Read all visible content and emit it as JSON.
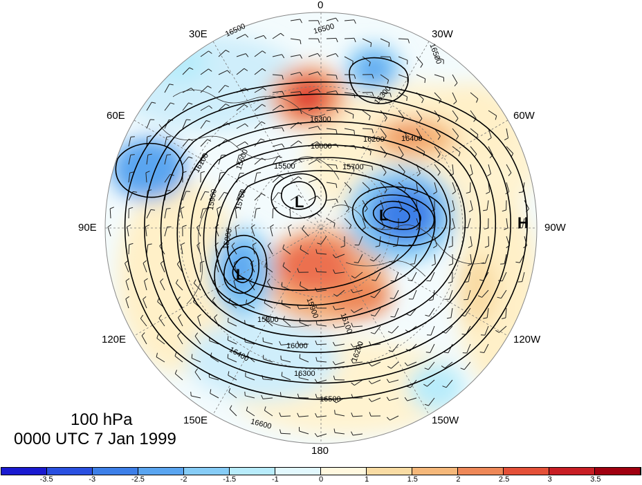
{
  "map": {
    "title_level": "100 hPa",
    "title_time": "0000 UTC 7 Jan 1999",
    "longitude_labels": [
      "0",
      "30W",
      "60W",
      "90W",
      "120W",
      "150W",
      "180",
      "150E",
      "120E",
      "90E",
      "60E",
      "30E"
    ],
    "pressure_systems": [
      "L",
      "L",
      "L",
      "H"
    ],
    "contour_labels": [
      "16500",
      "16500",
      "16500",
      "16400",
      "16300",
      "16300",
      "16200",
      "16100",
      "16000",
      "15900",
      "15800",
      "15700",
      "15600",
      "15500",
      "15700",
      "15800",
      "15900",
      "16000",
      "16100",
      "16200",
      "16300",
      "16400",
      "16500",
      "16600"
    ],
    "colors": {
      "negative_strong": "#1a1ad0",
      "negative_mid": "#5a9ff0",
      "neutral": "#ffffff",
      "positive_mid": "#f5a060",
      "positive_strong": "#a00010",
      "contour": "#000000"
    }
  },
  "colorbar": {
    "tick_labels": [
      "-3.5",
      "-3",
      "-2.5",
      "-2",
      "-1.5",
      "-1",
      "0",
      "1",
      "1.5",
      "2",
      "2.5",
      "3",
      "3.5"
    ],
    "colors": [
      "#1a1ad0",
      "#2a50e0",
      "#3d7fe8",
      "#5aa5f0",
      "#86ccf6",
      "#b8ecfb",
      "#e2f8fd",
      "#fff8df",
      "#f9dca4",
      "#f5b87a",
      "#ee8858",
      "#e45038",
      "#c81e24",
      "#a00010"
    ]
  }
}
